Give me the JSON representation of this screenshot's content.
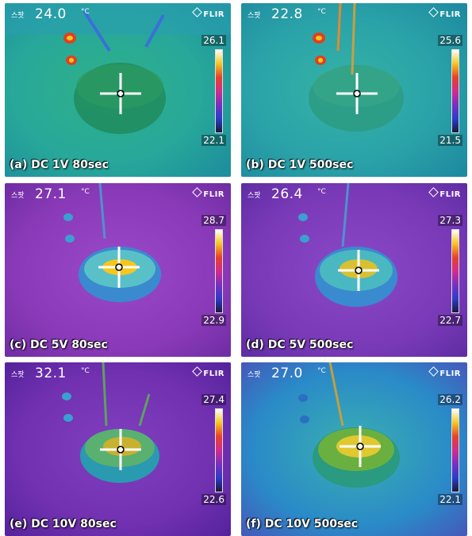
{
  "scale_gradient": [
    "#ffffff",
    "#f5c61d",
    "#e8402a",
    "#d42b8c",
    "#7a2fbf",
    "#2d3cc9",
    "#1a1a3a"
  ],
  "panels": [
    {
      "spot_label": "스팟",
      "spot_value": "24.0",
      "unit": "°C",
      "brand": "FLIR",
      "scale_max": "26.1",
      "scale_min": "22.1",
      "caption": "(a) DC 1V 80sec"
    },
    {
      "spot_label": "스팟",
      "spot_value": "22.8",
      "unit": "°C",
      "brand": "FLIR",
      "scale_max": "25.6",
      "scale_min": "21.5",
      "caption": "(b) DC 1V 500sec"
    },
    {
      "spot_label": "스팟",
      "spot_value": "27.1",
      "unit": "°C",
      "brand": "FLIR",
      "scale_max": "28.7",
      "scale_min": "22.9",
      "caption": "(c) DC 5V 80sec"
    },
    {
      "spot_label": "스팟",
      "spot_value": "26.4",
      "unit": "°C",
      "brand": "FLIR",
      "scale_max": "27.3",
      "scale_min": "22.7",
      "caption": "(d) DC 5V 500sec"
    },
    {
      "spot_label": "스팟",
      "spot_value": "32.1",
      "unit": "°C",
      "brand": "FLIR",
      "scale_max": "27.4",
      "scale_min": "22.6",
      "caption": "(e) DC 10V 80sec"
    },
    {
      "spot_label": "스팟",
      "spot_value": "27.0",
      "unit": "°C",
      "brand": "FLIR",
      "scale_max": "26.2",
      "scale_min": "22.1",
      "caption": "(f) DC 10V 500sec"
    }
  ]
}
